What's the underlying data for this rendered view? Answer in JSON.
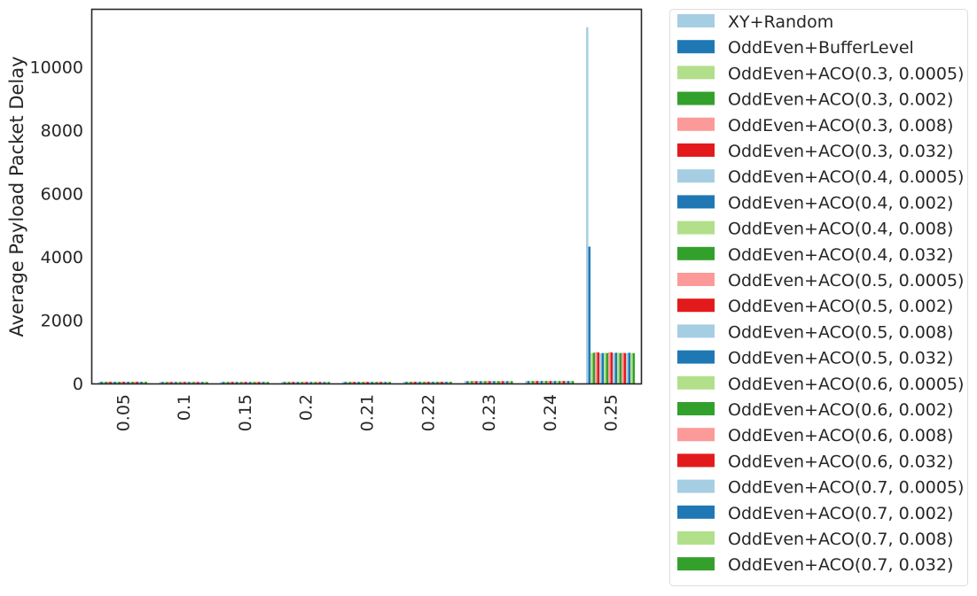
{
  "chart_data": {
    "type": "bar",
    "ylabel": "Average Payload Packet Delay",
    "xlabel": "",
    "ylim": [
      0,
      11800
    ],
    "yticks": [
      0,
      2000,
      4000,
      6000,
      8000,
      10000
    ],
    "grid": false,
    "legend_position": "outside-right",
    "categories": [
      "0.05",
      "0.1",
      "0.15",
      "0.2",
      "0.21",
      "0.22",
      "0.23",
      "0.24",
      "0.25"
    ],
    "palette": [
      "#a6cee3",
      "#1f78b4",
      "#b2df8a",
      "#33a02c",
      "#fb9a99",
      "#e31a1c"
    ],
    "series": [
      {
        "name": "XY+Random",
        "values": [
          55,
          50,
          50,
          50,
          50,
          55,
          75,
          80,
          11250
        ]
      },
      {
        "name": "OddEven+BufferLevel",
        "values": [
          55,
          50,
          50,
          50,
          50,
          55,
          75,
          80,
          4320
        ]
      },
      {
        "name": "OddEven+ACO(0.3, 0.0005)",
        "values": [
          55,
          50,
          50,
          50,
          50,
          55,
          75,
          80,
          960
        ]
      },
      {
        "name": "OddEven+ACO(0.3, 0.002)",
        "values": [
          55,
          50,
          50,
          50,
          50,
          55,
          75,
          80,
          970
        ]
      },
      {
        "name": "OddEven+ACO(0.3, 0.008)",
        "values": [
          55,
          50,
          50,
          50,
          50,
          55,
          75,
          80,
          990
        ]
      },
      {
        "name": "OddEven+ACO(0.3, 0.032)",
        "values": [
          55,
          50,
          50,
          50,
          50,
          55,
          75,
          80,
          980
        ]
      },
      {
        "name": "OddEven+ACO(0.4, 0.0005)",
        "values": [
          55,
          50,
          50,
          50,
          50,
          55,
          75,
          80,
          950
        ]
      },
      {
        "name": "OddEven+ACO(0.4, 0.002)",
        "values": [
          55,
          50,
          50,
          50,
          50,
          55,
          75,
          80,
          960
        ]
      },
      {
        "name": "OddEven+ACO(0.4, 0.008)",
        "values": [
          55,
          50,
          50,
          50,
          50,
          55,
          75,
          80,
          970
        ]
      },
      {
        "name": "OddEven+ACO(0.4, 0.032)",
        "values": [
          55,
          50,
          50,
          50,
          50,
          55,
          75,
          80,
          960
        ]
      },
      {
        "name": "OddEven+ACO(0.5, 0.0005)",
        "values": [
          55,
          50,
          50,
          50,
          50,
          55,
          75,
          80,
          990
        ]
      },
      {
        "name": "OddEven+ACO(0.5, 0.002)",
        "values": [
          55,
          50,
          50,
          50,
          50,
          55,
          75,
          80,
          980
        ]
      },
      {
        "name": "OddEven+ACO(0.5, 0.008)",
        "values": [
          55,
          50,
          50,
          50,
          50,
          55,
          75,
          80,
          960
        ]
      },
      {
        "name": "OddEven+ACO(0.5, 0.032)",
        "values": [
          55,
          50,
          50,
          50,
          50,
          55,
          75,
          80,
          970
        ]
      },
      {
        "name": "OddEven+ACO(0.6, 0.0005)",
        "values": [
          55,
          50,
          50,
          50,
          50,
          55,
          75,
          80,
          970
        ]
      },
      {
        "name": "OddEven+ACO(0.6, 0.002)",
        "values": [
          55,
          50,
          50,
          50,
          50,
          55,
          75,
          80,
          960
        ]
      },
      {
        "name": "OddEven+ACO(0.6, 0.008)",
        "values": [
          55,
          50,
          50,
          50,
          50,
          55,
          75,
          80,
          970
        ]
      },
      {
        "name": "OddEven+ACO(0.6, 0.032)",
        "values": [
          55,
          50,
          50,
          50,
          50,
          55,
          75,
          80,
          960
        ]
      },
      {
        "name": "OddEven+ACO(0.7, 0.0005)",
        "values": [
          55,
          50,
          50,
          50,
          50,
          55,
          75,
          80,
          960
        ]
      },
      {
        "name": "OddEven+ACO(0.7, 0.002)",
        "values": [
          55,
          50,
          50,
          50,
          50,
          55,
          75,
          80,
          970
        ]
      },
      {
        "name": "OddEven+ACO(0.7, 0.008)",
        "values": [
          55,
          50,
          50,
          50,
          50,
          55,
          75,
          80,
          960
        ]
      },
      {
        "name": "OddEven+ACO(0.7, 0.032)",
        "values": [
          55,
          50,
          50,
          50,
          50,
          55,
          75,
          80,
          960
        ]
      }
    ]
  }
}
